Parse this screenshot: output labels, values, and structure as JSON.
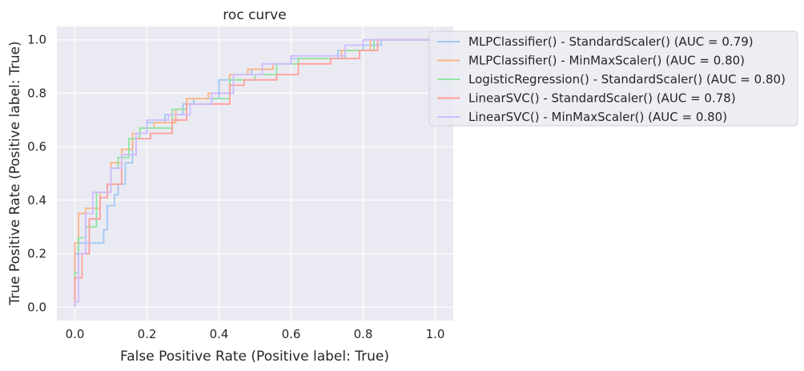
{
  "chart_data": {
    "type": "line",
    "title": "roc curve",
    "xlabel": "False Positive Rate (Positive label: True)",
    "ylabel": "True Positive Rate (Positive label: True)",
    "xlim": [
      -0.05,
      1.05
    ],
    "ylim": [
      -0.05,
      1.05
    ],
    "x_ticks": [
      0.0,
      0.2,
      0.4,
      0.6,
      0.8,
      1.0
    ],
    "x_tick_labels": [
      "0.0",
      "0.2",
      "0.4",
      "0.6",
      "0.8",
      "1.0"
    ],
    "y_ticks": [
      0.0,
      0.2,
      0.4,
      0.6,
      0.8,
      1.0
    ],
    "y_tick_labels": [
      "0.0",
      "0.2",
      "0.4",
      "0.6",
      "0.8",
      "1.0"
    ],
    "grid": true,
    "legend_position": "upper right",
    "series": [
      {
        "name": "MLPClassifier() - StandardScaler() (AUC = 0.79)",
        "color": "#a1c9f4",
        "x": [
          0,
          0,
          0.01,
          0.01,
          0.03,
          0.03,
          0.08,
          0.08,
          0.09,
          0.09,
          0.11,
          0.11,
          0.12,
          0.12,
          0.14,
          0.14,
          0.16,
          0.16,
          0.18,
          0.18,
          0.2,
          0.2,
          0.25,
          0.25,
          0.3,
          0.3,
          0.33,
          0.33,
          0.4,
          0.4,
          0.44,
          0.44,
          0.49,
          0.49,
          0.55,
          0.55,
          0.6,
          0.6,
          0.73,
          0.73,
          0.8,
          0.8,
          0.85,
          0.85,
          1.0
        ],
        "y": [
          0,
          0.2,
          0.2,
          0.24,
          0.24,
          0.24,
          0.24,
          0.29,
          0.29,
          0.38,
          0.38,
          0.42,
          0.42,
          0.46,
          0.46,
          0.54,
          0.54,
          0.63,
          0.63,
          0.67,
          0.67,
          0.69,
          0.69,
          0.72,
          0.72,
          0.76,
          0.76,
          0.78,
          0.78,
          0.85,
          0.85,
          0.87,
          0.87,
          0.89,
          0.89,
          0.91,
          0.91,
          0.93,
          0.93,
          0.96,
          0.96,
          0.98,
          0.98,
          1.0,
          1.0
        ]
      },
      {
        "name": "MLPClassifier() - MinMaxScaler() (AUC = 0.80)",
        "color": "#ffb482",
        "x": [
          0,
          0,
          0.01,
          0.01,
          0.03,
          0.03,
          0.07,
          0.07,
          0.1,
          0.1,
          0.13,
          0.13,
          0.16,
          0.16,
          0.18,
          0.18,
          0.22,
          0.22,
          0.28,
          0.28,
          0.31,
          0.31,
          0.37,
          0.37,
          0.43,
          0.43,
          0.48,
          0.48,
          0.55,
          0.55,
          0.62,
          0.62,
          0.74,
          0.74,
          0.82,
          0.82,
          0.86,
          0.86,
          1.0
        ],
        "y": [
          0,
          0.24,
          0.24,
          0.35,
          0.35,
          0.37,
          0.37,
          0.43,
          0.43,
          0.54,
          0.54,
          0.59,
          0.59,
          0.65,
          0.65,
          0.67,
          0.67,
          0.69,
          0.69,
          0.74,
          0.74,
          0.78,
          0.78,
          0.8,
          0.8,
          0.87,
          0.87,
          0.89,
          0.89,
          0.91,
          0.91,
          0.93,
          0.93,
          0.96,
          0.96,
          1.0,
          1.0,
          1.0,
          1.0
        ]
      },
      {
        "name": "LogisticRegression() - StandardScaler() (AUC = 0.80)",
        "color": "#8de5a1",
        "x": [
          0,
          0,
          0.01,
          0.01,
          0.03,
          0.03,
          0.06,
          0.06,
          0.1,
          0.1,
          0.12,
          0.12,
          0.15,
          0.15,
          0.18,
          0.18,
          0.22,
          0.22,
          0.27,
          0.27,
          0.31,
          0.31,
          0.38,
          0.38,
          0.43,
          0.43,
          0.5,
          0.5,
          0.56,
          0.56,
          0.62,
          0.62,
          0.75,
          0.75,
          0.83,
          0.83,
          1.0
        ],
        "y": [
          0,
          0.13,
          0.13,
          0.26,
          0.26,
          0.3,
          0.3,
          0.43,
          0.43,
          0.52,
          0.52,
          0.56,
          0.56,
          0.63,
          0.63,
          0.67,
          0.67,
          0.67,
          0.67,
          0.74,
          0.74,
          0.76,
          0.76,
          0.78,
          0.78,
          0.85,
          0.85,
          0.87,
          0.87,
          0.91,
          0.91,
          0.93,
          0.93,
          0.96,
          0.96,
          1.0,
          1.0
        ]
      },
      {
        "name": "LinearSVC() - StandardScaler() (AUC = 0.78)",
        "color": "#ff9f9b",
        "x": [
          0,
          0,
          0.02,
          0.02,
          0.04,
          0.04,
          0.07,
          0.07,
          0.09,
          0.09,
          0.13,
          0.13,
          0.17,
          0.17,
          0.21,
          0.21,
          0.27,
          0.27,
          0.31,
          0.31,
          0.39,
          0.39,
          0.43,
          0.43,
          0.47,
          0.47,
          0.56,
          0.56,
          0.62,
          0.62,
          0.71,
          0.71,
          0.79,
          0.79,
          0.84,
          0.84,
          1.0
        ],
        "y": [
          0,
          0.11,
          0.11,
          0.2,
          0.2,
          0.33,
          0.33,
          0.41,
          0.41,
          0.46,
          0.46,
          0.57,
          0.57,
          0.63,
          0.63,
          0.65,
          0.65,
          0.7,
          0.7,
          0.76,
          0.76,
          0.76,
          0.76,
          0.83,
          0.83,
          0.85,
          0.85,
          0.87,
          0.87,
          0.91,
          0.91,
          0.93,
          0.93,
          0.96,
          0.96,
          1.0,
          1.0
        ]
      },
      {
        "name": "LinearSVC() - MinMaxScaler() (AUC = 0.80)",
        "color": "#d0bbff",
        "x": [
          0,
          0,
          0.01,
          0.01,
          0.03,
          0.03,
          0.05,
          0.05,
          0.1,
          0.1,
          0.13,
          0.13,
          0.17,
          0.17,
          0.2,
          0.2,
          0.26,
          0.26,
          0.32,
          0.32,
          0.38,
          0.38,
          0.44,
          0.44,
          0.52,
          0.52,
          0.6,
          0.6,
          0.75,
          0.75,
          0.8,
          0.8,
          1.0
        ],
        "y": [
          0,
          0.02,
          0.02,
          0.2,
          0.2,
          0.35,
          0.35,
          0.43,
          0.43,
          0.52,
          0.52,
          0.57,
          0.57,
          0.65,
          0.65,
          0.7,
          0.7,
          0.72,
          0.72,
          0.76,
          0.76,
          0.8,
          0.8,
          0.87,
          0.87,
          0.91,
          0.91,
          0.94,
          0.94,
          0.98,
          0.98,
          1.0,
          1.0
        ]
      }
    ]
  }
}
